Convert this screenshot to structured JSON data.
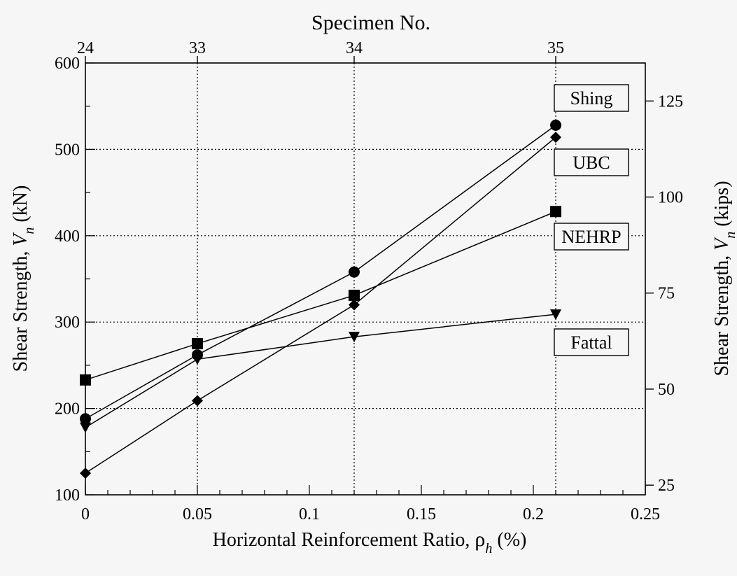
{
  "chart_data": {
    "type": "line",
    "top_axis": {
      "title": "Specimen No.",
      "ticks": [
        {
          "x": 0,
          "label": "24"
        },
        {
          "x": 0.05,
          "label": "33"
        },
        {
          "x": 0.12,
          "label": "34"
        },
        {
          "x": 0.21,
          "label": "35"
        }
      ]
    },
    "xlabel": {
      "main": "Horizontal Reinforcement Ratio, ",
      "symbol": "ρ",
      "sub": "h",
      "unit": " (%)"
    },
    "ylabel_left": {
      "main": "Shear Strength, ",
      "symbol": "V",
      "sub": "n",
      "unit": "  (kN)"
    },
    "ylabel_right": {
      "main": "Shear Strength, ",
      "symbol": "V",
      "sub": "n",
      "unit": "  (kips)"
    },
    "xlim": [
      0,
      0.25
    ],
    "ylim": [
      100,
      600
    ],
    "x_ticks": [
      0,
      0.05,
      0.1,
      0.15,
      0.2,
      0.25
    ],
    "x_tick_labels": [
      "0",
      "0.05",
      "0.1",
      "0.15",
      "0.2",
      "0.25"
    ],
    "y_ticks": [
      100,
      200,
      300,
      400,
      500,
      600
    ],
    "y_tick_labels": [
      "100",
      "200",
      "300",
      "400",
      "500",
      "600"
    ],
    "right_ticks_kips": [
      25,
      50,
      75,
      100,
      125
    ],
    "right_tick_labels": [
      "25",
      "50",
      "75",
      "100",
      "125"
    ],
    "kips_to_kN": 4.448,
    "grid": true,
    "series": [
      {
        "name": "Shing",
        "marker": "circle",
        "x": [
          0,
          0.05,
          0.12,
          0.21
        ],
        "values": [
          188,
          262,
          358,
          528
        ]
      },
      {
        "name": "UBC",
        "marker": "diamond",
        "x": [
          0,
          0.05,
          0.12,
          0.21
        ],
        "values": [
          125,
          209,
          320,
          514
        ]
      },
      {
        "name": "NEHRP",
        "marker": "square",
        "x": [
          0,
          0.05,
          0.12,
          0.21
        ],
        "values": [
          233,
          275,
          331,
          428
        ]
      },
      {
        "name": "Fattal",
        "marker": "triangle-down",
        "x": [
          0,
          0.05,
          0.12,
          0.21
        ],
        "values": [
          178,
          257,
          283,
          309
        ]
      }
    ],
    "legend_placement": "right"
  }
}
